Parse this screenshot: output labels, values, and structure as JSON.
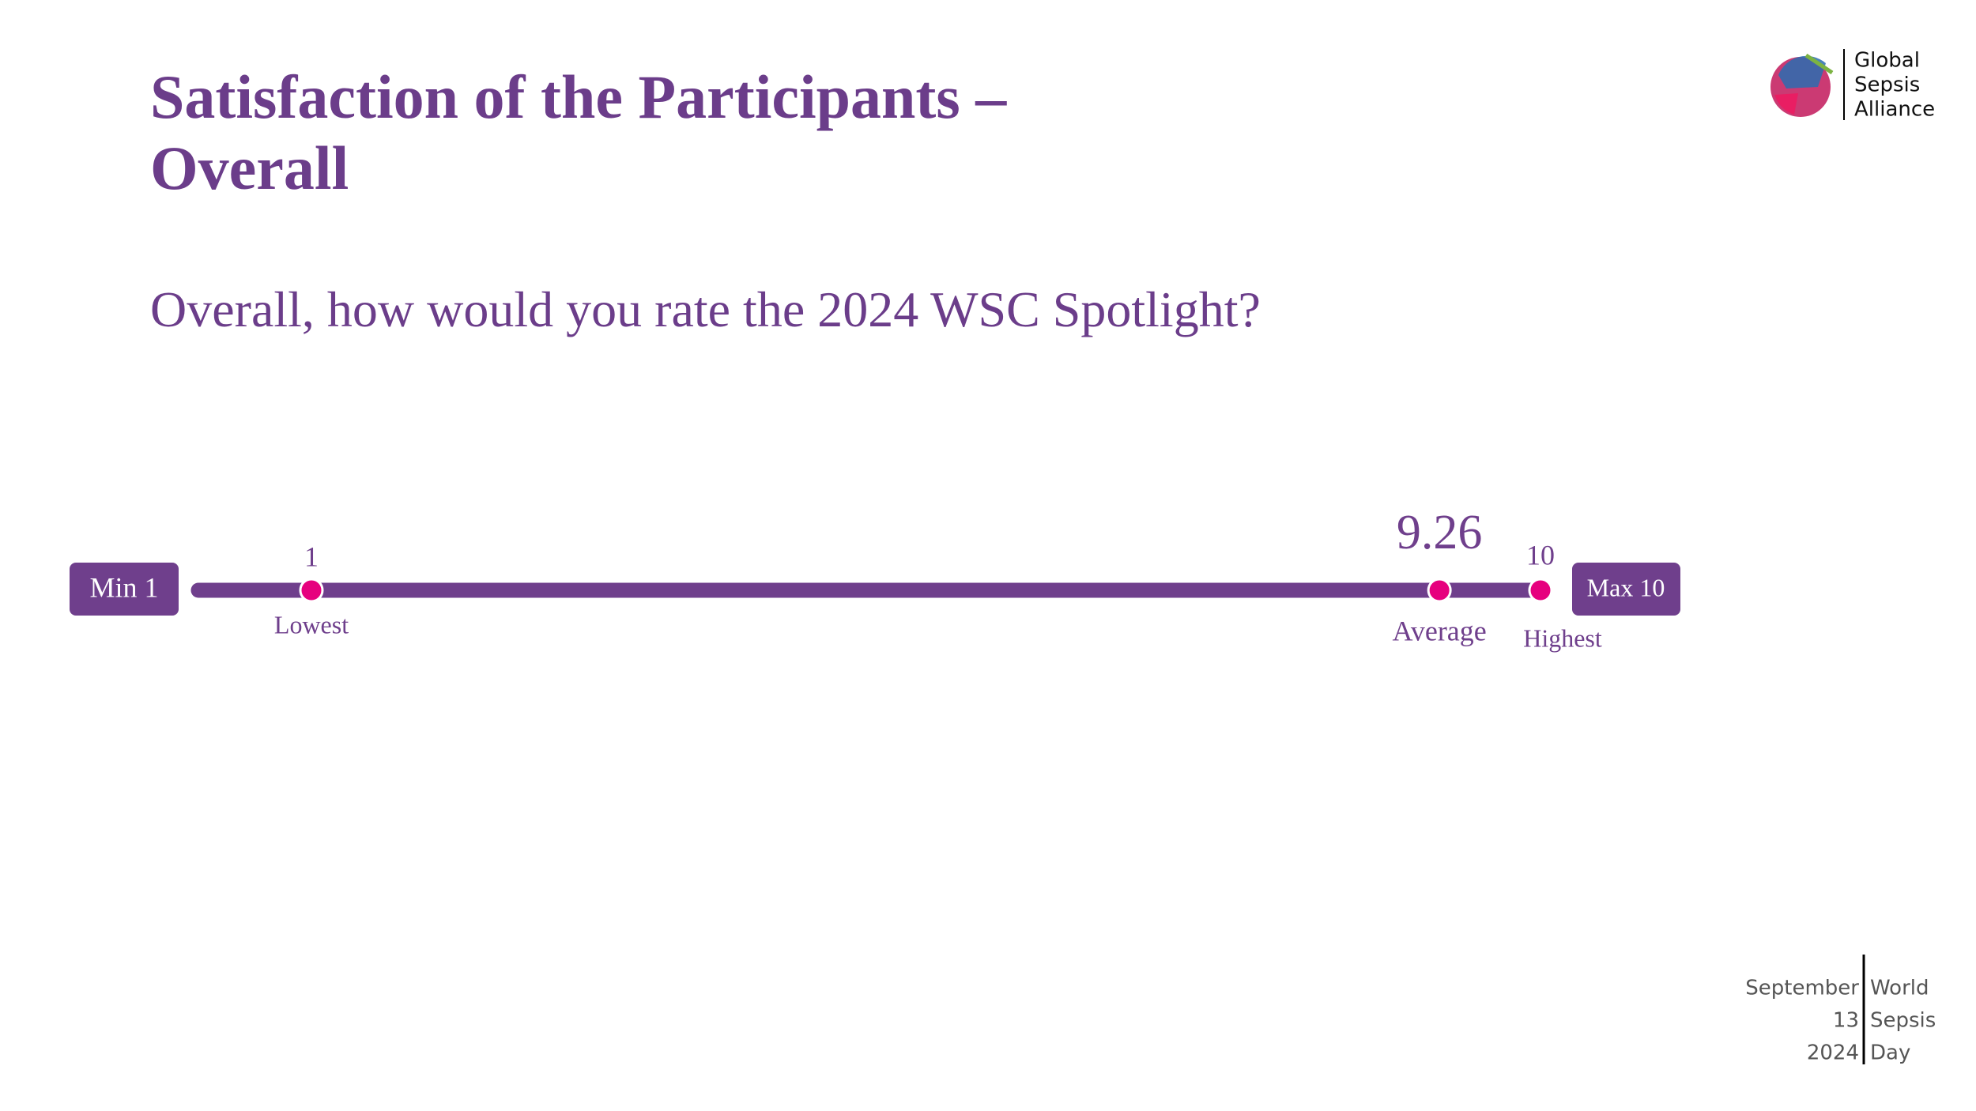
{
  "chart_data": {
    "type": "scale",
    "title": "Satisfaction of the Participants – Overall",
    "subtitle": "Overall, how would you rate the 2024 WSC Spotlight?",
    "min_label": "Min 1",
    "max_label": "Max 10",
    "x": [
      1,
      9.26,
      10
    ],
    "labels": [
      "Lowest",
      "Average",
      "Highest"
    ],
    "xlim": [
      1,
      10
    ],
    "line_color": "#6f3f8c",
    "color": "#e6007e"
  },
  "logo": [
    "Global",
    "Sepsis",
    "Alliance"
  ],
  "footer": {
    "date": [
      "September",
      "13",
      "2024"
    ],
    "event": [
      "World",
      "Sepsis",
      "Day"
    ]
  }
}
